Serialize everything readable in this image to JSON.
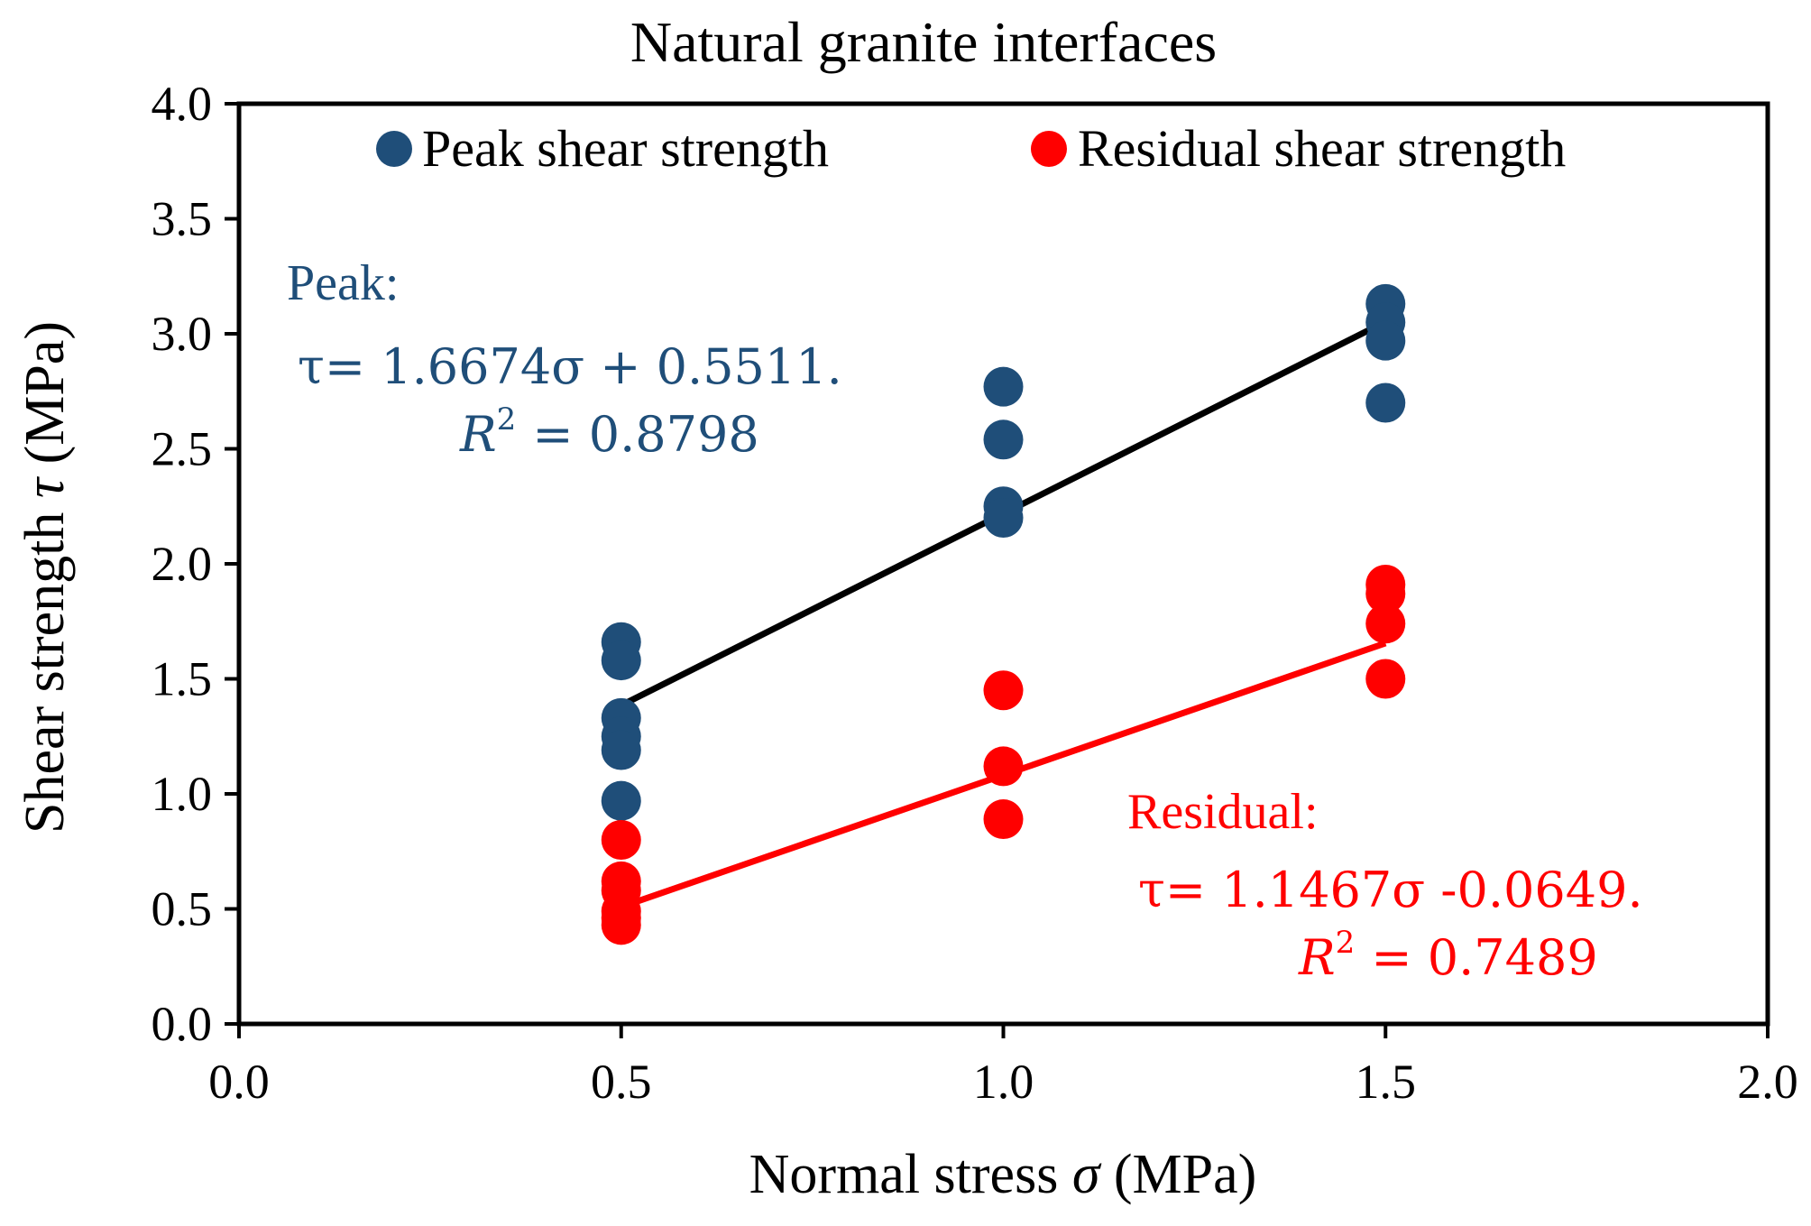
{
  "chart_data": {
    "type": "scatter",
    "title": "Natural granite interfaces",
    "xlabel": "Normal stress",
    "xlabel_symbol": "σ",
    "xlabel_unit": "(MPa)",
    "ylabel": "Shear strength",
    "ylabel_symbol": "τ",
    "ylabel_unit": "(MPa)",
    "xlim": [
      0.0,
      2.0
    ],
    "ylim": [
      0.0,
      4.0
    ],
    "xticks": [
      0.0,
      0.5,
      1.0,
      1.5,
      2.0
    ],
    "yticks": [
      0.0,
      0.5,
      1.0,
      1.5,
      2.0,
      2.5,
      3.0,
      3.5,
      4.0
    ],
    "xtick_labels": [
      "0.0",
      "0.5",
      "1.0",
      "1.5",
      "2.0"
    ],
    "ytick_labels": [
      "0.0",
      "0.5",
      "1.0",
      "1.5",
      "2.0",
      "2.5",
      "3.0",
      "3.5",
      "4.0"
    ],
    "grid": false,
    "legend_position": "top",
    "series": [
      {
        "name": "Peak shear strength",
        "color": "#1f4e79",
        "x": [
          0.5,
          0.5,
          0.5,
          0.5,
          0.5,
          0.5,
          1.0,
          1.0,
          1.0,
          1.0,
          1.5,
          1.5,
          1.5,
          1.5
        ],
        "y": [
          1.66,
          1.58,
          1.33,
          1.25,
          1.19,
          0.97,
          2.77,
          2.54,
          2.25,
          2.2,
          3.13,
          3.05,
          2.97,
          2.7
        ],
        "fit": {
          "slope": 1.6674,
          "intercept": 0.5511,
          "x_range": [
            0.5,
            1.5
          ],
          "color": "#000000"
        },
        "annotation": {
          "label": "Peak:",
          "equation": "τ= 1.6674σ + 0.5511.",
          "r2_lhs": "R",
          "r2_exp": "2",
          "r2_rhs": "= 0.8798"
        }
      },
      {
        "name": "Residual shear strength",
        "color": "#ff0000",
        "x": [
          0.5,
          0.5,
          0.5,
          0.5,
          0.5,
          0.5,
          1.0,
          1.0,
          1.0,
          1.5,
          1.5,
          1.5,
          1.5
        ],
        "y": [
          0.8,
          0.62,
          0.58,
          0.49,
          0.46,
          0.43,
          1.45,
          1.12,
          0.89,
          1.91,
          1.87,
          1.74,
          1.5
        ],
        "fit": {
          "slope": 1.1467,
          "intercept": -0.0649,
          "x_range": [
            0.5,
            1.5
          ],
          "color": "#ff0000"
        },
        "annotation": {
          "label": "Residual:",
          "equation": "τ= 1.1467σ -0.0649.",
          "r2_lhs": "R",
          "r2_exp": "2",
          "r2_rhs": "= 0.7489"
        }
      }
    ]
  }
}
